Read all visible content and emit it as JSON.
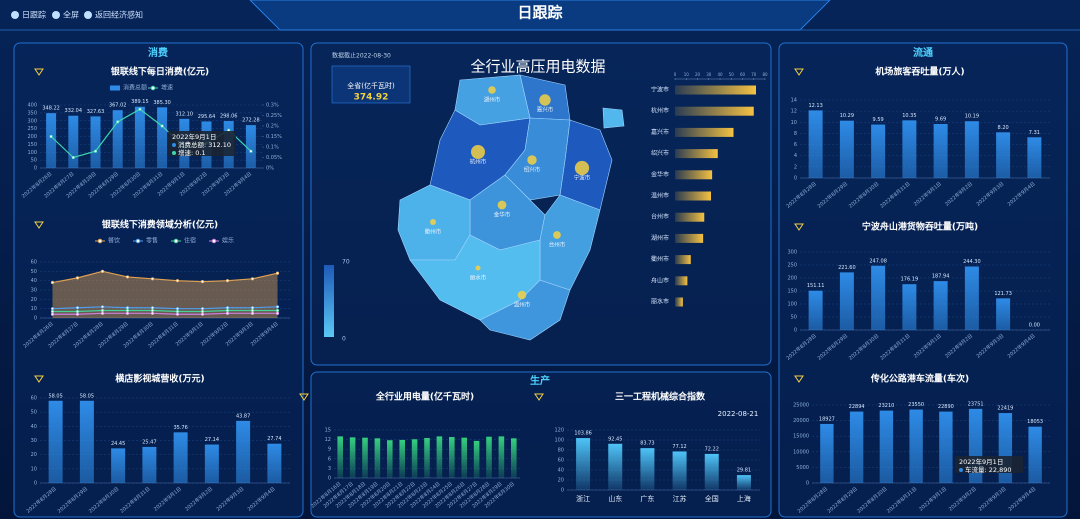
{
  "header": {
    "title": "日跟踪"
  },
  "nav": [
    "日跟踪",
    "全屏",
    "返回经济感知"
  ],
  "sections": [
    "消费",
    "生产",
    "流通"
  ],
  "chart_data": [
    {
      "type": "bar",
      "title": "银联线下每日消费(亿元)",
      "categories": [
        "2022年8月26日",
        "2022年8月27日",
        "2022年8月28日",
        "2022年8月29日",
        "2022年8月30日",
        "2022年8月31日",
        "2022年9月1日",
        "2022年9月2日",
        "2022年9月3日",
        "2022年9月4日"
      ],
      "series": [
        {
          "name": "消费总额",
          "type": "bar",
          "color": "#2e8be6",
          "values": [
            348.22,
            332.04,
            327.63,
            367.02,
            389.15,
            385.3,
            312.1,
            295.64,
            298.06,
            272.28
          ],
          "value_labels": [
            "348.22",
            "332.04",
            "327.63",
            "367.02",
            "389.15",
            "385.30",
            "312.10",
            "295.64",
            "298.06",
            "272.28"
          ]
        },
        {
          "name": "增速",
          "type": "line",
          "axis": "y2",
          "color": "#3fd6b0",
          "values": [
            0.15,
            0.05,
            0.08,
            0.22,
            0.28,
            0.2,
            0.1,
            0.12,
            0.18,
            0.08
          ]
        }
      ],
      "ylim": [
        0,
        400
      ],
      "yticks": [
        0,
        50,
        100,
        150,
        200,
        250,
        300,
        350,
        400
      ],
      "y2lim": [
        0,
        0.3
      ],
      "y2ticks": [
        {
          "value": 0,
          "label": "0%"
        },
        {
          "value": 0.05,
          "label": "0.05%"
        },
        {
          "value": 0.1,
          "label": "0.1%"
        },
        {
          "value": 0.15,
          "label": "0.15%"
        },
        {
          "value": 0.2,
          "label": "0.2%"
        },
        {
          "value": 0.25,
          "label": "0.25%"
        },
        {
          "value": 0.3,
          "label": "0.3%"
        }
      ],
      "grid": true,
      "tooltip": {
        "title": "2022年9月1日",
        "lines": [
          "消费总额: 312.10",
          "增速: 0.1"
        ]
      }
    },
    {
      "type": "line",
      "title": "银联线下消费领域分析(亿元)",
      "categories": [
        "2022年8月26日",
        "2022年8月27日",
        "2022年8月28日",
        "2022年8月29日",
        "2022年8月30日",
        "2022年8月31日",
        "2022年9月1日",
        "2022年9月2日",
        "2022年9月3日",
        "2022年9月4日"
      ],
      "series": [
        {
          "name": "餐饮",
          "color": "#e0a050",
          "area": true,
          "values": [
            38,
            43,
            50,
            44,
            42,
            40,
            39,
            40,
            42,
            48
          ]
        },
        {
          "name": "零售",
          "color": "#4f9df0",
          "values": [
            10,
            11,
            12,
            11,
            11,
            10,
            10,
            11,
            11,
            12
          ]
        },
        {
          "name": "住宿",
          "color": "#46d39a",
          "values": [
            7,
            7,
            8,
            8,
            8,
            7,
            7,
            8,
            8,
            8
          ]
        },
        {
          "name": "娱乐",
          "color": "#d07fe0",
          "values": [
            4,
            4,
            5,
            5,
            5,
            4,
            4,
            5,
            5,
            5
          ]
        }
      ],
      "ylim": [
        0,
        60
      ],
      "yticks": [
        0,
        10,
        20,
        30,
        40,
        50,
        60
      ],
      "grid": true
    },
    {
      "type": "bar",
      "title": "横店影视城营收(万元)",
      "categories": [
        "2022年8月28日",
        "2022年8月29日",
        "2022年8月30日",
        "2022年8月31日",
        "2022年9月1日",
        "2022年9月2日",
        "2022年9月3日",
        "2022年9月4日"
      ],
      "values": [
        58.05,
        58.05,
        24.45,
        25.47,
        35.76,
        27.14,
        43.87,
        27.74
      ],
      "value_labels": [
        "58.05",
        "58.05",
        "24.45",
        "25.47",
        "35.76",
        "27.14",
        "43.87",
        "27.74"
      ],
      "color": "#2e8be6",
      "ylim": [
        0,
        60
      ],
      "yticks": [
        0,
        10,
        20,
        30,
        40,
        50,
        60
      ],
      "grid": true
    },
    {
      "type": "map",
      "title": "全行业高压用电数据",
      "subtitle": "数据截止2022-08-30",
      "total_label": "全省(亿千瓦时)",
      "total": 374.92,
      "categories": [
        "宁波市",
        "杭州市",
        "嘉兴市",
        "绍兴市",
        "金华市",
        "温州市",
        "台州市",
        "湖州市",
        "衢州市",
        "舟山市",
        "丽水市"
      ],
      "values": [
        72,
        70,
        52,
        38,
        33,
        32,
        26,
        25,
        14,
        11,
        7
      ],
      "color": "#f5c242",
      "xlim": [
        0,
        80
      ],
      "xticks": [
        0,
        10,
        20,
        30,
        40,
        50,
        60,
        70,
        80
      ],
      "visual_range": [
        0,
        70
      ]
    },
    {
      "type": "bar",
      "title": "全行业用电量(亿千瓦时)",
      "categories": [
        "2022年8月16日",
        "2022年8月17日",
        "2022年8月18日",
        "2022年8月19日",
        "2022年8月20日",
        "2022年8月21日",
        "2022年8月22日",
        "2022年8月23日",
        "2022年8月24日",
        "2022年8月25日",
        "2022年8月26日",
        "2022年8月27日",
        "2022年8月28日",
        "2022年8月29日",
        "2022年8月30日"
      ],
      "values": [
        13,
        12.7,
        12.6,
        12.4,
        11.8,
        11.9,
        12.1,
        12.5,
        13,
        12.8,
        12.6,
        11.6,
        12.9,
        13,
        12.4
      ],
      "color": "#35d07f",
      "ylim": [
        0,
        15
      ],
      "yticks": [
        0,
        3,
        6,
        9,
        12,
        15
      ],
      "grid": true
    },
    {
      "type": "bar",
      "title": "三一工程机械综合指数",
      "date": "2022-08-21",
      "categories": [
        "浙江",
        "山东",
        "广东",
        "江苏",
        "全国",
        "上海"
      ],
      "values": [
        103.86,
        92.45,
        83.73,
        77.12,
        72.22,
        29.81
      ],
      "value_labels": [
        "103.86",
        "92.45",
        "83.73",
        "77.12",
        "72.22",
        "29.81"
      ],
      "color": "#4fc3f7",
      "ylim": [
        0,
        120
      ],
      "yticks": [
        0,
        20,
        40,
        60,
        80,
        100,
        120
      ],
      "grid": true
    },
    {
      "type": "bar",
      "title": "机场旅客吞吐量(万人)",
      "categories": [
        "2022年8月28日",
        "2022年8月29日",
        "2022年8月30日",
        "2022年8月31日",
        "2022年9月1日",
        "2022年9月2日",
        "2022年9月3日",
        "2022年9月4日"
      ],
      "values": [
        12.13,
        10.29,
        9.59,
        10.35,
        9.69,
        10.19,
        8.2,
        7.31
      ],
      "value_labels": [
        "12.13",
        "10.29",
        "9.59",
        "10.35",
        "9.69",
        "10.19",
        "8.20",
        "7.31"
      ],
      "color": "#2e8be6",
      "ylim": [
        0,
        14
      ],
      "yticks": [
        0,
        2,
        4,
        6,
        8,
        10,
        12,
        14
      ],
      "grid": true
    },
    {
      "type": "bar",
      "title": "宁波舟山港货物吞吐量(万吨)",
      "categories": [
        "2022年8月28日",
        "2022年8月29日",
        "2022年8月30日",
        "2022年8月31日",
        "2022年9月1日",
        "2022年9月2日",
        "2022年9月3日",
        "2022年9月4日"
      ],
      "values": [
        151.11,
        221.6,
        247.08,
        176.19,
        187.94,
        244.3,
        121.73,
        0.0
      ],
      "value_labels": [
        "151.11",
        "221.60",
        "247.08",
        "176.19",
        "187.94",
        "244.30",
        "121.73",
        "0.00"
      ],
      "color": "#2e8be6",
      "ylim": [
        0,
        300
      ],
      "yticks": [
        0,
        50,
        100,
        150,
        200,
        250,
        300
      ],
      "grid": true
    },
    {
      "type": "bar",
      "title": "传化公路港车流量(车次)",
      "categories": [
        "2022年8月28日",
        "2022年8月29日",
        "2022年8月30日",
        "2022年8月31日",
        "2022年9月1日",
        "2022年9月2日",
        "2022年9月3日",
        "2022年9月4日"
      ],
      "values": [
        18927,
        22894,
        23210,
        23550,
        22890,
        23751,
        22419,
        18053
      ],
      "value_labels": [
        "18927",
        "22894",
        "23210",
        "23550",
        "22890",
        "23751",
        "22419",
        "18053"
      ],
      "color": "#2e8be6",
      "ylim": [
        0,
        25000
      ],
      "yticks": [
        0,
        5000,
        10000,
        15000,
        20000,
        25000
      ],
      "grid": true,
      "tooltip": {
        "title": "2022年9月1日",
        "lines": [
          "车流量: 22,890"
        ]
      }
    }
  ]
}
